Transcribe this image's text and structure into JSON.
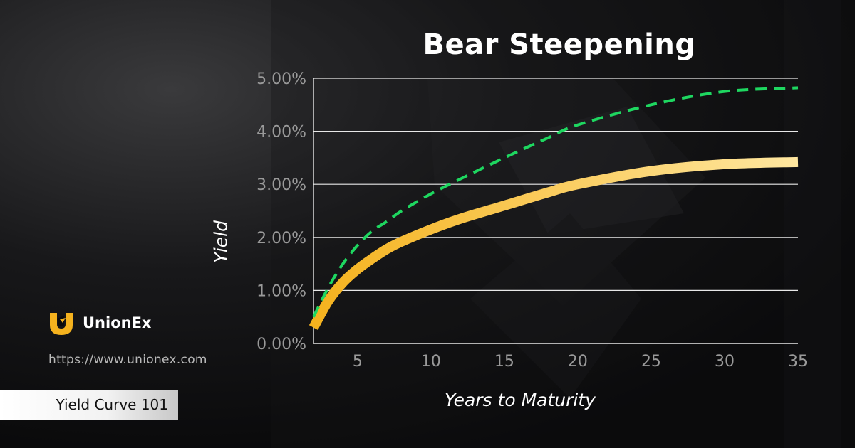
{
  "brand": {
    "name": "UnionEx",
    "url": "https://www.unionex.com",
    "series_label": "Yield Curve 101",
    "accent_color": "#f5b21e"
  },
  "chart_data": {
    "type": "line",
    "title": "Bear Steepening",
    "xlabel": "Years to Maturity",
    "ylabel": "Yield",
    "xlim": [
      2,
      35
    ],
    "ylim": [
      0,
      5
    ],
    "xticks": [
      "5",
      "10",
      "15",
      "20",
      "25",
      "30",
      "35"
    ],
    "yticks": [
      "0.00%",
      "1.00%",
      "2.00%",
      "3.00%",
      "4.00%",
      "5.00%"
    ],
    "grid": "horizontal",
    "series": [
      {
        "style": "solid-thick",
        "color": "#f5b21e",
        "color_end": "#ffe7a0",
        "x": [
          2,
          3,
          4,
          5,
          6,
          7,
          8,
          10,
          12,
          15,
          18,
          20,
          25,
          30,
          35
        ],
        "y": [
          0.3,
          0.8,
          1.15,
          1.4,
          1.6,
          1.78,
          1.92,
          2.15,
          2.35,
          2.6,
          2.85,
          3.0,
          3.25,
          3.38,
          3.42
        ]
      },
      {
        "style": "dashed",
        "color": "#1ed760",
        "x": [
          2,
          3,
          4,
          5,
          6,
          7,
          8,
          10,
          12,
          15,
          18,
          20,
          25,
          30,
          35
        ],
        "y": [
          0.5,
          1.05,
          1.5,
          1.85,
          2.12,
          2.3,
          2.5,
          2.82,
          3.1,
          3.5,
          3.88,
          4.12,
          4.5,
          4.75,
          4.82
        ]
      }
    ]
  }
}
